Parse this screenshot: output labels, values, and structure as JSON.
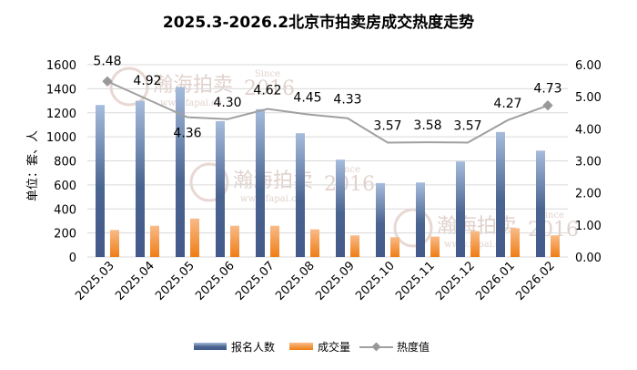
{
  "chart_data": {
    "type": "bar",
    "title": "2025.3-2026.2北京市拍卖房成交热度走势",
    "ylabel": "单位：套、人",
    "categories": [
      "2025.03",
      "2025.04",
      "2025.05",
      "2025.06",
      "2025.07",
      "2025.08",
      "2025.09",
      "2025.10",
      "2025.11",
      "2025.12",
      "2026.01",
      "2026.02"
    ],
    "series": [
      {
        "name": "报名人数",
        "type": "bar",
        "axis": "left",
        "color": "#4a6490",
        "values": [
          1265,
          1300,
          1415,
          1130,
          1230,
          1030,
          810,
          615,
          620,
          795,
          1040,
          885
        ]
      },
      {
        "name": "成交量",
        "type": "bar",
        "axis": "left",
        "color": "#f08a2a",
        "values": [
          225,
          260,
          320,
          260,
          260,
          230,
          180,
          165,
          170,
          215,
          240,
          180
        ]
      },
      {
        "name": "热度值",
        "type": "line",
        "axis": "right",
        "color": "#a0a0a0",
        "values": [
          5.48,
          4.92,
          4.36,
          4.3,
          4.62,
          4.45,
          4.33,
          3.57,
          3.58,
          3.57,
          4.27,
          4.73
        ]
      }
    ],
    "left_axis": {
      "ylim": [
        0,
        1600
      ],
      "ticks": [
        "0",
        "200",
        "400",
        "600",
        "800",
        "1000",
        "1200",
        "1400",
        "1600"
      ]
    },
    "right_axis": {
      "ylim": [
        0,
        6
      ],
      "ticks": [
        "0.00",
        "1.00",
        "2.00",
        "3.00",
        "4.00",
        "5.00",
        "6.00"
      ]
    },
    "grid": true,
    "legend": "bottom"
  },
  "watermark": {
    "brand": "瀚海拍卖",
    "since": "Since",
    "year": "2016",
    "url": "www.fapai.cn"
  }
}
